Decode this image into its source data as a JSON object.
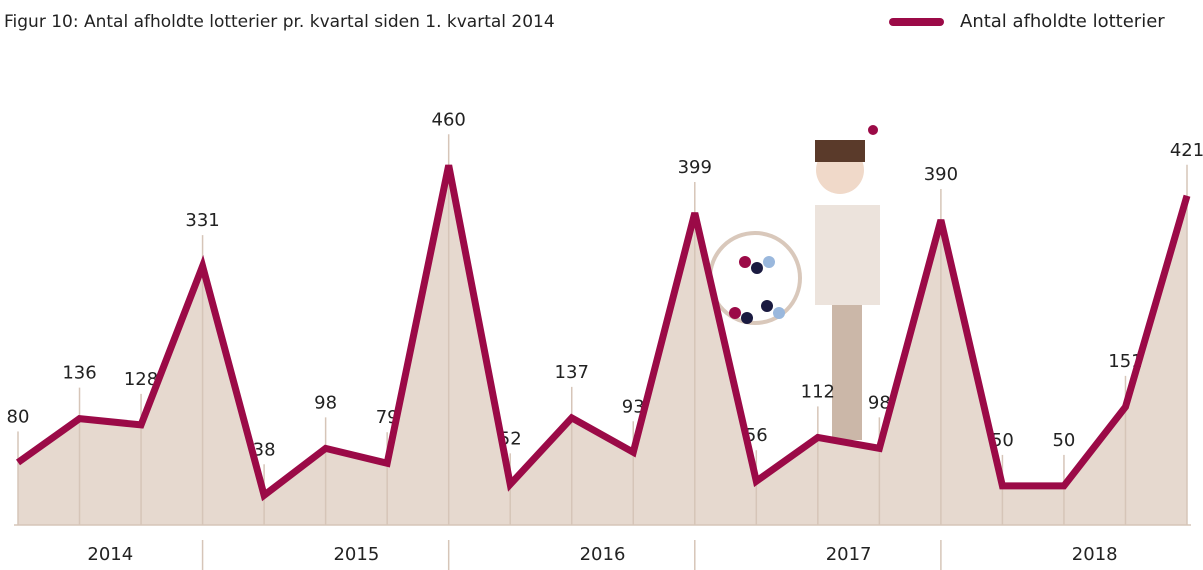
{
  "chart_data": {
    "type": "line",
    "title": "Figur 10: Antal afholdte lotterier pr. kvartal siden 1. kvartal 2014",
    "groups": [
      "2014",
      "2015",
      "2016",
      "2017",
      "2018"
    ],
    "series": [
      {
        "name": "Antal afholdte lotterier",
        "color": "#9b0a47",
        "values": [
          80,
          136,
          128,
          331,
          38,
          98,
          79,
          460,
          52,
          137,
          93,
          399,
          56,
          112,
          98,
          390,
          50,
          50,
          151,
          421
        ]
      }
    ],
    "area_color": "#e6d9cf",
    "ylim": [
      0,
      500
    ],
    "legend": "top-right"
  }
}
